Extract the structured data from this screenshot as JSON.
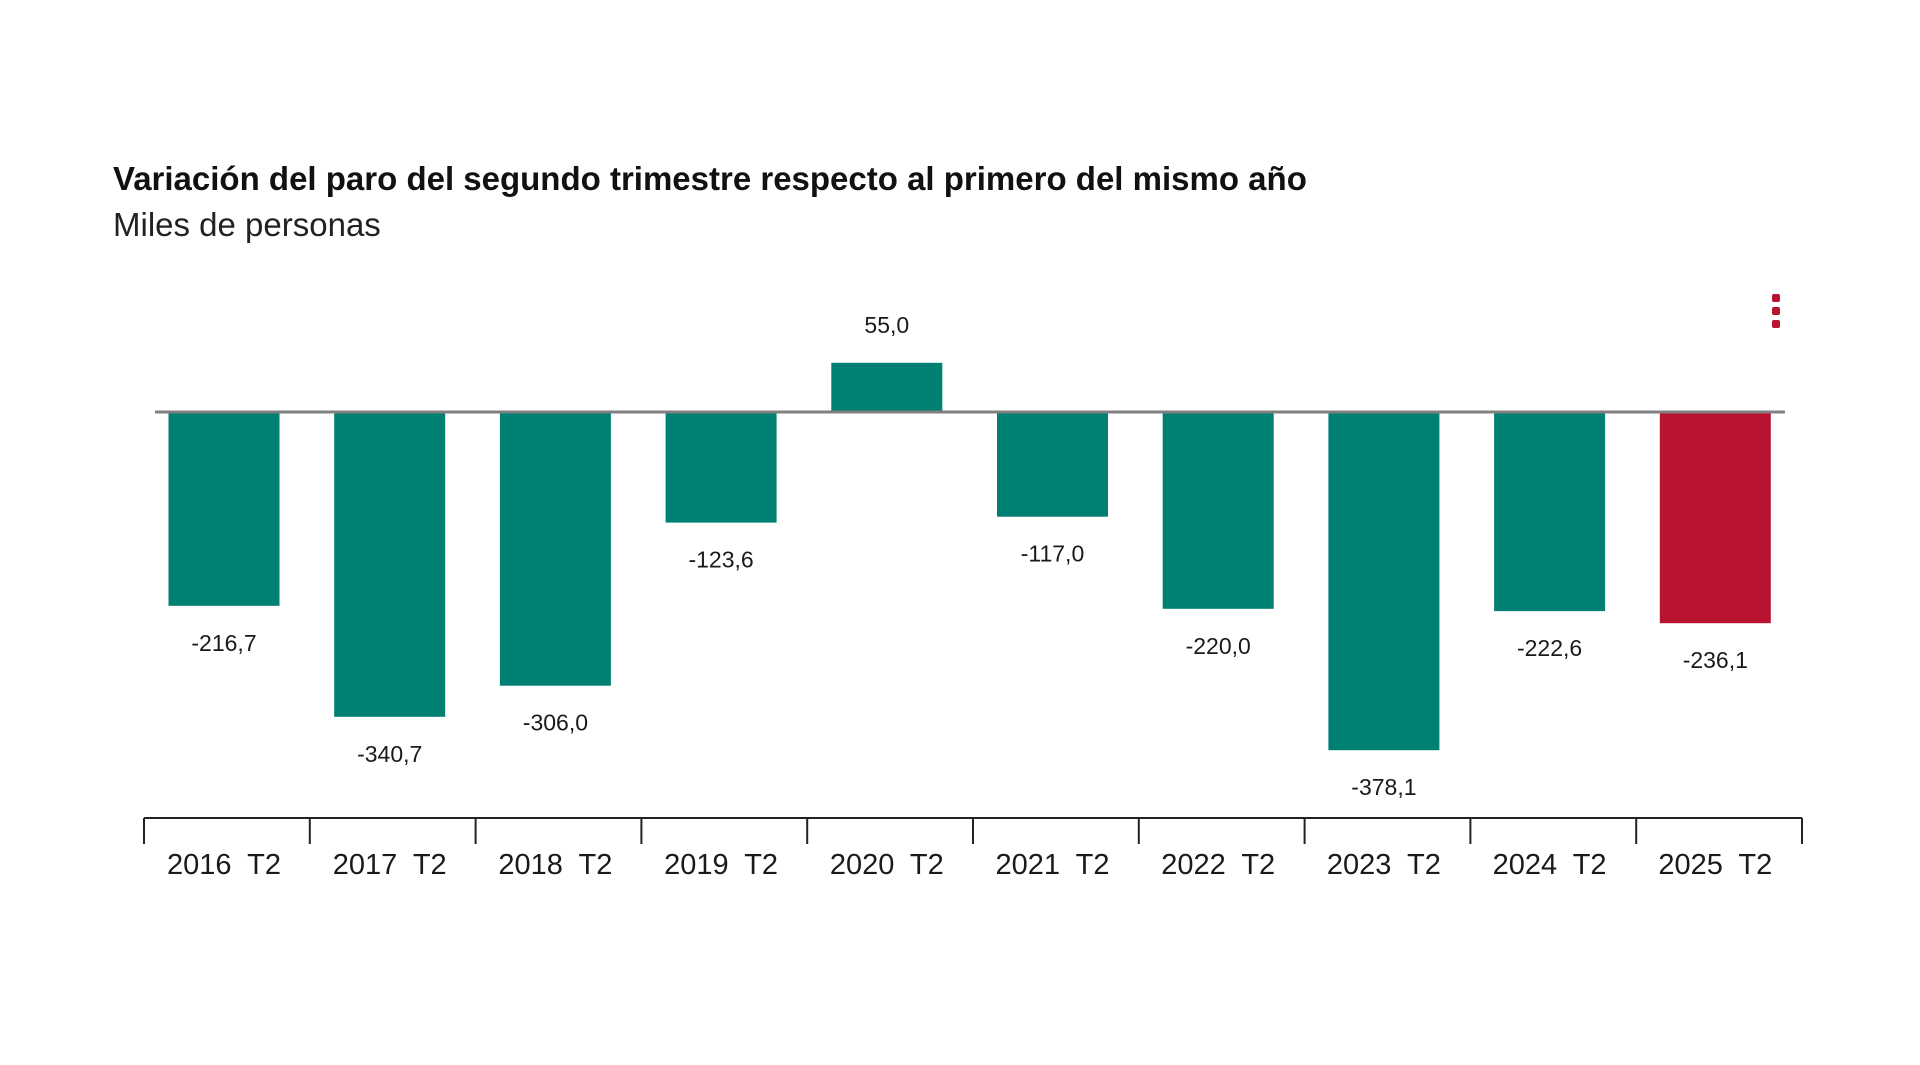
{
  "colors": {
    "bar": "#007f73",
    "bar_highlight": "#b81431",
    "menu": "#b81431",
    "zero_line": "#808080",
    "axis": "#222222"
  },
  "menu_icon": "vertical-ellipsis-icon",
  "chart_data": {
    "type": "bar",
    "title": "Variación del paro del segundo trimestre respecto al primero del mismo año",
    "subtitle": "Miles de personas",
    "categories": [
      "2016  T2",
      "2017  T2",
      "2018  T2",
      "2019  T2",
      "2020  T2",
      "2021  T2",
      "2022  T2",
      "2023  T2",
      "2024  T2",
      "2025  T2"
    ],
    "values": [
      -216.7,
      -340.7,
      -306.0,
      -123.6,
      55.0,
      -117.0,
      -220.0,
      -378.1,
      -222.6,
      -236.1
    ],
    "value_labels": [
      "-216,7",
      "-340,7",
      "-306,0",
      "-123,6",
      "55,0",
      "-117,0",
      "-220,0",
      "-378,1",
      "-222,6",
      "-236,1"
    ],
    "highlight_index": 9,
    "ylim": [
      -400,
      60
    ],
    "grid": false,
    "legend": "none"
  }
}
